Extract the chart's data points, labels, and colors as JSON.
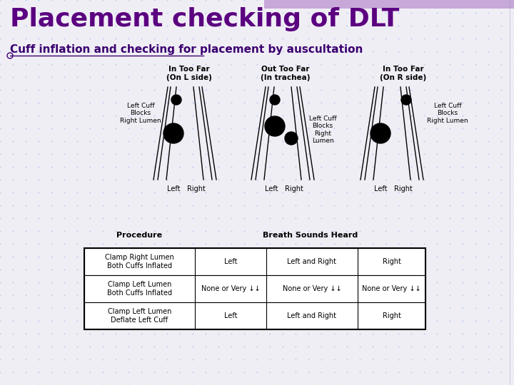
{
  "title": "Placement checking of DLT",
  "subtitle": "Cuff inflation and checking for placement by auscultation",
  "title_color": "#5B0080",
  "subtitle_color": "#3A006F",
  "bg_color": "#F0EEF5",
  "header_bar_color": "#C8A8D8",
  "grid_color": "#AACCEE",
  "table": {
    "rows": [
      [
        "Clamp Right Lumen\nBoth Cuffs Inflated",
        "Left",
        "Left and Right",
        "Right"
      ],
      [
        "Clamp Left Lumen\nBoth Cuffs Inflated",
        "None or Very ↓↓",
        "None or Very ↓↓",
        "None or Very ↓↓"
      ],
      [
        "Clamp Left Lumen\nDeflate Left Cuff",
        "Left",
        "Left and Right",
        "Right"
      ]
    ]
  }
}
